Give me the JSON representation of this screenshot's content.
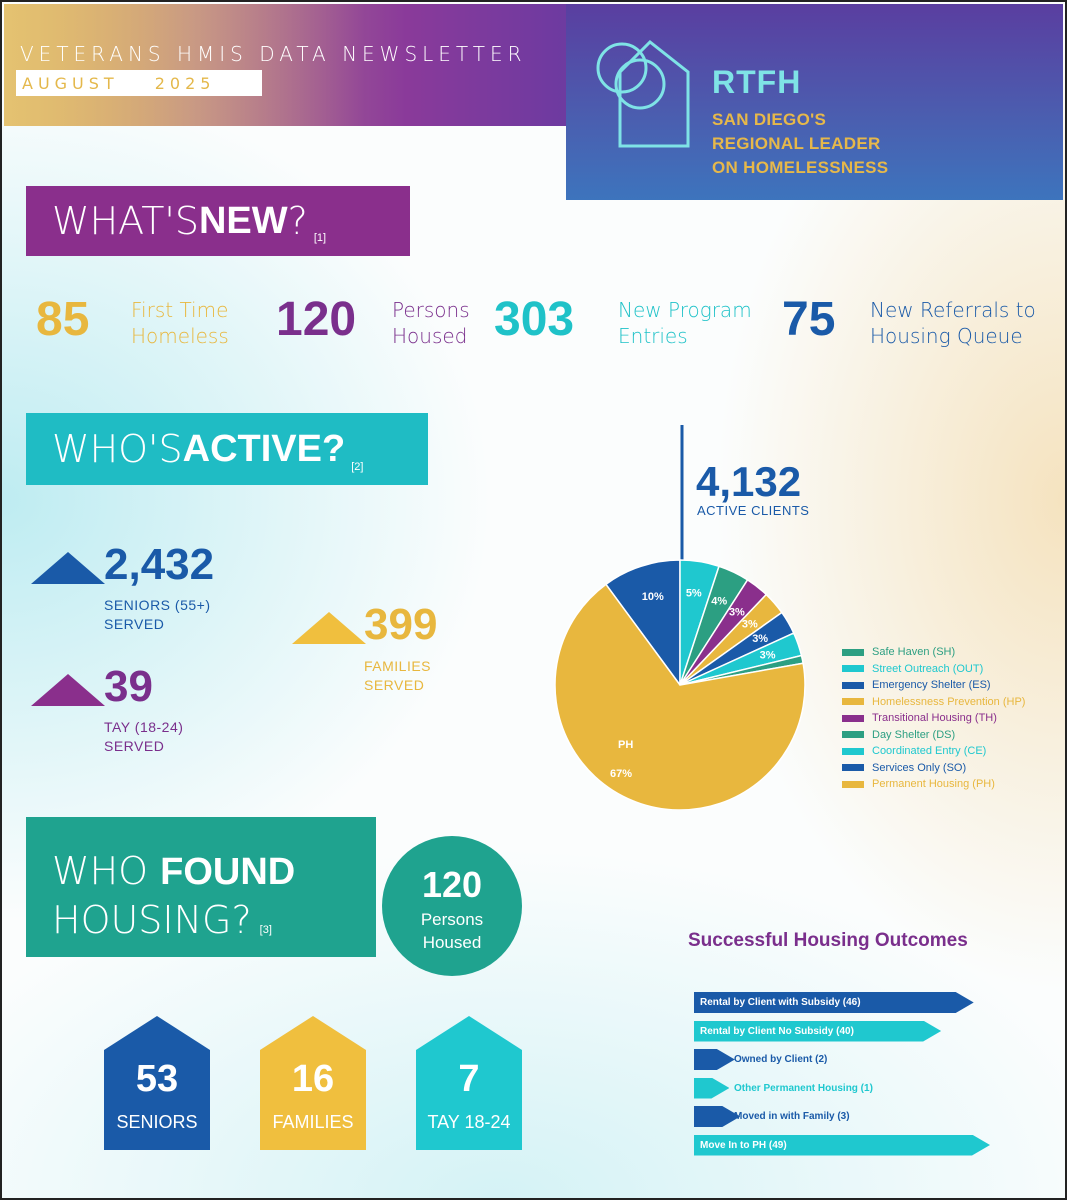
{
  "header": {
    "newsletter_title": "VETERANS HMIS DATA NEWSLETTER",
    "month": "AUGUST",
    "year": "2025",
    "brand_name": "RTFH",
    "brand_tagline": [
      "SAN DIEGO'S",
      "REGIONAL LEADER",
      "ON HOMELESSNESS"
    ]
  },
  "whats_new": {
    "title_light": "WHAT'S ",
    "title_bold": "NEW",
    "title_suffix": "?",
    "ref": "[1]",
    "stats": [
      {
        "value": "85",
        "label_1": "First Time",
        "label_2": "Homeless",
        "color": "#e8b73e"
      },
      {
        "value": "120",
        "label_1": "Persons",
        "label_2": "Housed",
        "color": "#7a2f8c"
      },
      {
        "value": "303",
        "label_1": "New Program",
        "label_2": "Entries",
        "color": "#1fc2c8"
      },
      {
        "value": "75",
        "label_1": "New Referrals to",
        "label_2": "Housing Queue",
        "color": "#1a5aa8"
      }
    ]
  },
  "whos_active": {
    "title_light": "WHO'S ",
    "title_bold": "ACTIVE?",
    "ref": "[2]",
    "seniors": {
      "value": "2,432",
      "label_1": "SENIORS (55+)",
      "label_2": "SERVED",
      "color": "#1a5aa8"
    },
    "tay": {
      "value": "39",
      "label_1": "TAY (18-24)",
      "label_2": "SERVED",
      "color": "#7a2f8c"
    },
    "families": {
      "value": "399",
      "label_1": "FAMILIES",
      "label_2": "SERVED",
      "color": "#e8b73e"
    },
    "active_clients": {
      "value": "4,132",
      "label": "ACTIVE CLIENTS"
    }
  },
  "chart_data": {
    "type": "pie",
    "title": "",
    "slices": [
      {
        "name": "Permanent Housing (PH)",
        "value": 67,
        "color": "#e8b73e",
        "label": "67%",
        "inner_label": "PH"
      },
      {
        "name": "Services Only (SO)",
        "value": 10,
        "color": "#1a5aa8",
        "label": "10%"
      },
      {
        "name": "Coordinated Entry (CE)",
        "value": 5,
        "color": "#1fc8cf",
        "label": "5%"
      },
      {
        "name": "Day Shelter (DS)",
        "value": 4,
        "color": "#2c9f82",
        "label": "4%"
      },
      {
        "name": "Transitional Housing (TH)",
        "value": 3,
        "color": "#8a2f8c",
        "label": "3%"
      },
      {
        "name": "Homelessness Prevention (HP)",
        "value": 3,
        "color": "#e8b73e",
        "label": "3%"
      },
      {
        "name": "Emergency Shelter (ES)",
        "value": 3,
        "color": "#1a5aa8",
        "label": "3%"
      },
      {
        "name": "Street Outreach (OUT)",
        "value": 3,
        "color": "#1fc8cf",
        "label": "3%"
      },
      {
        "name": "Safe Haven (SH)",
        "value": 1,
        "color": "#2c9f82",
        "label": ""
      }
    ],
    "legend": [
      {
        "name": "Safe Haven (SH)",
        "color": "#2c9f82"
      },
      {
        "name": "Street Outreach (OUT)",
        "color": "#1fc8cf"
      },
      {
        "name": "Emergency Shelter (ES)",
        "color": "#1a5aa8"
      },
      {
        "name": "Homelessness Prevention (HP)",
        "color": "#e8b73e"
      },
      {
        "name": "Transitional Housing (TH)",
        "color": "#8a2f8c"
      },
      {
        "name": "Day Shelter (DS)",
        "color": "#2c9f82"
      },
      {
        "name": "Coordinated Entry (CE)",
        "color": "#1fc8cf"
      },
      {
        "name": "Services Only (SO)",
        "color": "#1a5aa8"
      },
      {
        "name": "Permanent Housing (PH)",
        "color": "#e8b73e"
      }
    ],
    "legend_position": "right"
  },
  "who_found": {
    "title_light_1": "WHO ",
    "title_bold": "FOUND",
    "title_light_2": "HOUSING?",
    "ref": "[3]",
    "circle_value": "120",
    "circle_label_1": "Persons",
    "circle_label_2": "Housed",
    "houses": [
      {
        "value": "53",
        "label": "SENIORS",
        "color": "#1a5aa8"
      },
      {
        "value": "16",
        "label": "FAMILIES",
        "color": "#f0bf3e"
      },
      {
        "value": "7",
        "label": "TAY 18-24",
        "color": "#1fc8cf"
      }
    ]
  },
  "outcomes": {
    "title": "Successful Housing Outcomes",
    "items": [
      {
        "label": "Rental by Client with Subsidy (46)",
        "value": 46,
        "color": "#1a5aa8"
      },
      {
        "label": "Rental by Client No Subsidy (40)",
        "value": 40,
        "color": "#1fc8cf"
      },
      {
        "label": "Owned by Client (2)",
        "value": 2,
        "color": "#1a5aa8"
      },
      {
        "label": "Other Permanent Housing (1)",
        "value": 1,
        "color": "#1fc8cf"
      },
      {
        "label": "Moved in with Family (3)",
        "value": 3,
        "color": "#1a5aa8"
      },
      {
        "label": "Move In to PH (49)",
        "value": 49,
        "color": "#1fc8cf"
      }
    ]
  }
}
